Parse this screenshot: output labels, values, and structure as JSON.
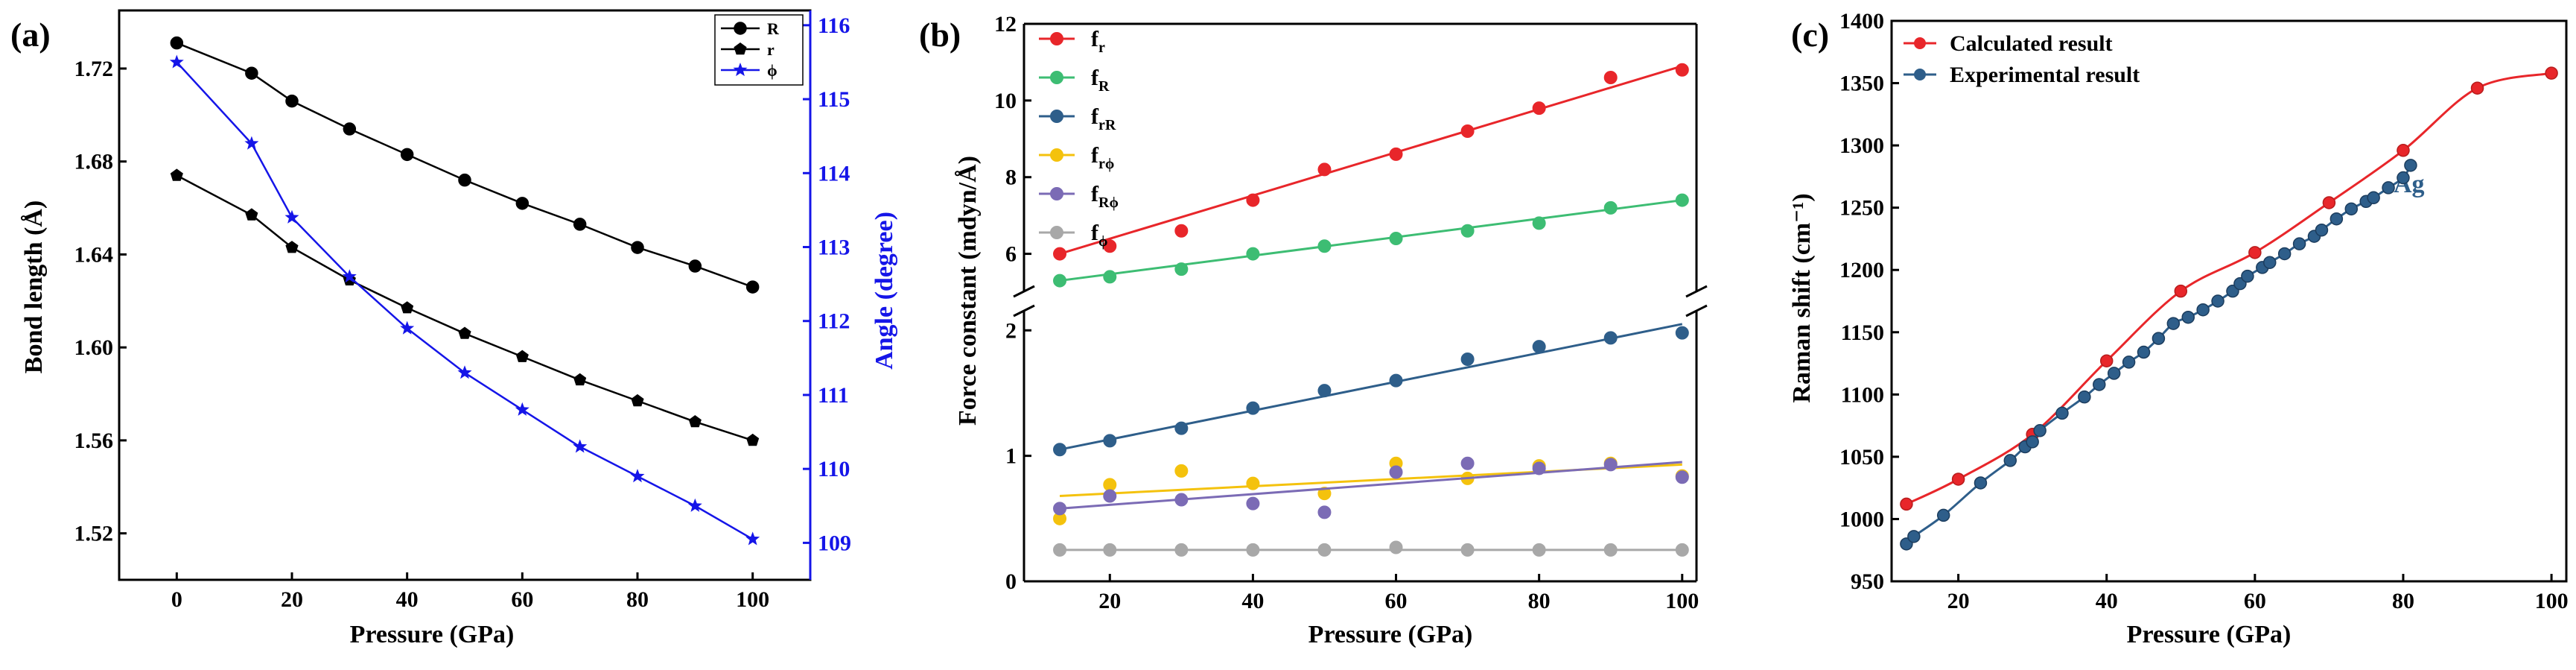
{
  "chart_data": [
    {
      "type": "line",
      "panel_label": "(a)",
      "xlabel": "Pressure (GPa)",
      "ylabel": "Bond length (Å)",
      "y2label": "Angle (degree)",
      "xlim": [
        -10,
        110
      ],
      "ylim": [
        1.5,
        1.745
      ],
      "y2lim": [
        108.5,
        116.2
      ],
      "x_ticks": [
        "0",
        "20",
        "40",
        "60",
        "80",
        "100"
      ],
      "x_tick_values": [
        0,
        20,
        40,
        60,
        80,
        100
      ],
      "y_ticks": [
        "1.52",
        "1.56",
        "1.60",
        "1.64",
        "1.68",
        "1.72"
      ],
      "y_tick_values": [
        1.52,
        1.56,
        1.6,
        1.64,
        1.68,
        1.72
      ],
      "y2_ticks": [
        "109",
        "110",
        "111",
        "112",
        "113",
        "114",
        "115",
        "116"
      ],
      "y2_tick_values": [
        109,
        110,
        111,
        112,
        113,
        114,
        115,
        116
      ],
      "x": [
        0,
        13,
        20,
        30,
        40,
        50,
        60,
        70,
        80,
        90,
        100
      ],
      "legend_position": "top-right",
      "series": [
        {
          "name": "R",
          "color": "#000000",
          "marker": "circle",
          "axis": "left",
          "values": [
            1.731,
            1.718,
            1.706,
            1.694,
            1.683,
            1.672,
            1.662,
            1.653,
            1.643,
            1.635,
            1.626
          ]
        },
        {
          "name": "r",
          "color": "#000000",
          "marker": "pentagon",
          "axis": "left",
          "values": [
            1.674,
            1.657,
            1.643,
            1.629,
            1.617,
            1.606,
            1.596,
            1.586,
            1.577,
            1.568,
            1.56
          ]
        },
        {
          "name": "ϕ",
          "color": "#1515e8",
          "marker": "star",
          "axis": "right",
          "values": [
            115.5,
            114.4,
            113.4,
            112.6,
            111.9,
            111.3,
            110.8,
            110.3,
            109.9,
            109.5,
            109.05
          ]
        }
      ]
    },
    {
      "type": "scatter",
      "panel_label": "(b)",
      "xlabel": "Pressure (GPa)",
      "ylabel": "Force constant (mdyn/Å)",
      "xlim": [
        8,
        102
      ],
      "y_break": true,
      "y_upper_range": [
        5,
        12
      ],
      "y_lower_range": [
        0,
        2.15
      ],
      "x_ticks": [
        "20",
        "40",
        "60",
        "80",
        "100"
      ],
      "x_tick_values": [
        20,
        40,
        60,
        80,
        100
      ],
      "y_upper_ticks": [
        "6",
        "8",
        "10",
        "12"
      ],
      "y_upper_tick_values": [
        6,
        8,
        10,
        12
      ],
      "y_lower_ticks": [
        "0",
        "1",
        "2"
      ],
      "y_lower_tick_values": [
        0,
        1,
        2
      ],
      "x": [
        13,
        20,
        30,
        40,
        50,
        60,
        70,
        80,
        90,
        100
      ],
      "legend": [
        "f",
        "f",
        "f",
        "f",
        "f",
        "f"
      ],
      "legend_subscripts": [
        "r",
        "R",
        "rR",
        "rϕ",
        "Rϕ",
        "ϕ"
      ],
      "legend_position": "top-left",
      "series": [
        {
          "color": "#e8262a",
          "segment": "upper",
          "fit": [
            6.0,
            10.9
          ],
          "values": [
            6.0,
            6.2,
            6.6,
            7.4,
            8.2,
            8.6,
            9.2,
            9.8,
            10.6,
            10.8
          ]
        },
        {
          "color": "#3dbd73",
          "segment": "upper",
          "fit": [
            5.3,
            7.4
          ],
          "values": [
            5.3,
            5.4,
            5.6,
            6.0,
            6.2,
            6.4,
            6.6,
            6.8,
            7.2,
            7.4
          ]
        },
        {
          "color": "#2e5e8a",
          "segment": "lower",
          "fit": [
            1.05,
            2.05
          ],
          "values": [
            1.05,
            1.12,
            1.22,
            1.38,
            1.52,
            1.6,
            1.77,
            1.87,
            1.94,
            1.98
          ]
        },
        {
          "color": "#f4c20d",
          "segment": "lower",
          "fit": [
            0.68,
            0.93
          ],
          "values": [
            0.5,
            0.77,
            0.88,
            0.78,
            0.7,
            0.94,
            0.82,
            0.92,
            0.94,
            0.84
          ]
        },
        {
          "color": "#7b6bb5",
          "segment": "lower",
          "fit": [
            0.58,
            0.95
          ],
          "values": [
            0.58,
            0.68,
            0.65,
            0.62,
            0.55,
            0.87,
            0.94,
            0.9,
            0.93,
            0.83
          ]
        },
        {
          "color": "#a8a8a8",
          "segment": "lower",
          "fit": [
            0.25,
            0.25
          ],
          "values": [
            0.25,
            0.25,
            0.25,
            0.25,
            0.25,
            0.27,
            0.25,
            0.25,
            0.25,
            0.25
          ]
        }
      ]
    },
    {
      "type": "line",
      "panel_label": "(c)",
      "xlabel": "Pressure (GPa)",
      "ylabel": "Raman shift (cm⁻¹)",
      "annotation": "Ag",
      "xlim": [
        11,
        102
      ],
      "ylim": [
        950,
        1400
      ],
      "x_ticks": [
        "20",
        "40",
        "60",
        "80",
        "100"
      ],
      "x_tick_values": [
        20,
        40,
        60,
        80,
        100
      ],
      "y_ticks": [
        "950",
        "1000",
        "1050",
        "1100",
        "1150",
        "1200",
        "1250",
        "1300",
        "1350",
        "1400"
      ],
      "y_tick_values": [
        950,
        1000,
        1050,
        1100,
        1150,
        1200,
        1250,
        1300,
        1350,
        1400
      ],
      "legend_position": "top-left",
      "series": [
        {
          "name": "Calculated result",
          "color": "#e8262a",
          "x": [
            13,
            20,
            30,
            40,
            50,
            60,
            70,
            80,
            90,
            100
          ],
          "values": [
            1012,
            1032,
            1068,
            1127,
            1183,
            1214,
            1254,
            1296,
            1346,
            1358
          ]
        },
        {
          "name": "Experimental result",
          "color": "#2e5e8a",
          "x": [
            13,
            14,
            18,
            23,
            27,
            29,
            30,
            31,
            34,
            37,
            39,
            41,
            43,
            45,
            47,
            49,
            51,
            53,
            55,
            57,
            58,
            59,
            61,
            62,
            64,
            66,
            68,
            69,
            71,
            73,
            75,
            76,
            78,
            80,
            81
          ],
          "values": [
            980,
            986,
            1003,
            1029,
            1047,
            1058,
            1062,
            1071,
            1085,
            1098,
            1108,
            1117,
            1126,
            1134,
            1145,
            1157,
            1162,
            1168,
            1175,
            1183,
            1189,
            1195,
            1202,
            1206,
            1213,
            1221,
            1227,
            1232,
            1241,
            1249,
            1255,
            1258,
            1266,
            1274,
            1284
          ]
        }
      ]
    }
  ]
}
